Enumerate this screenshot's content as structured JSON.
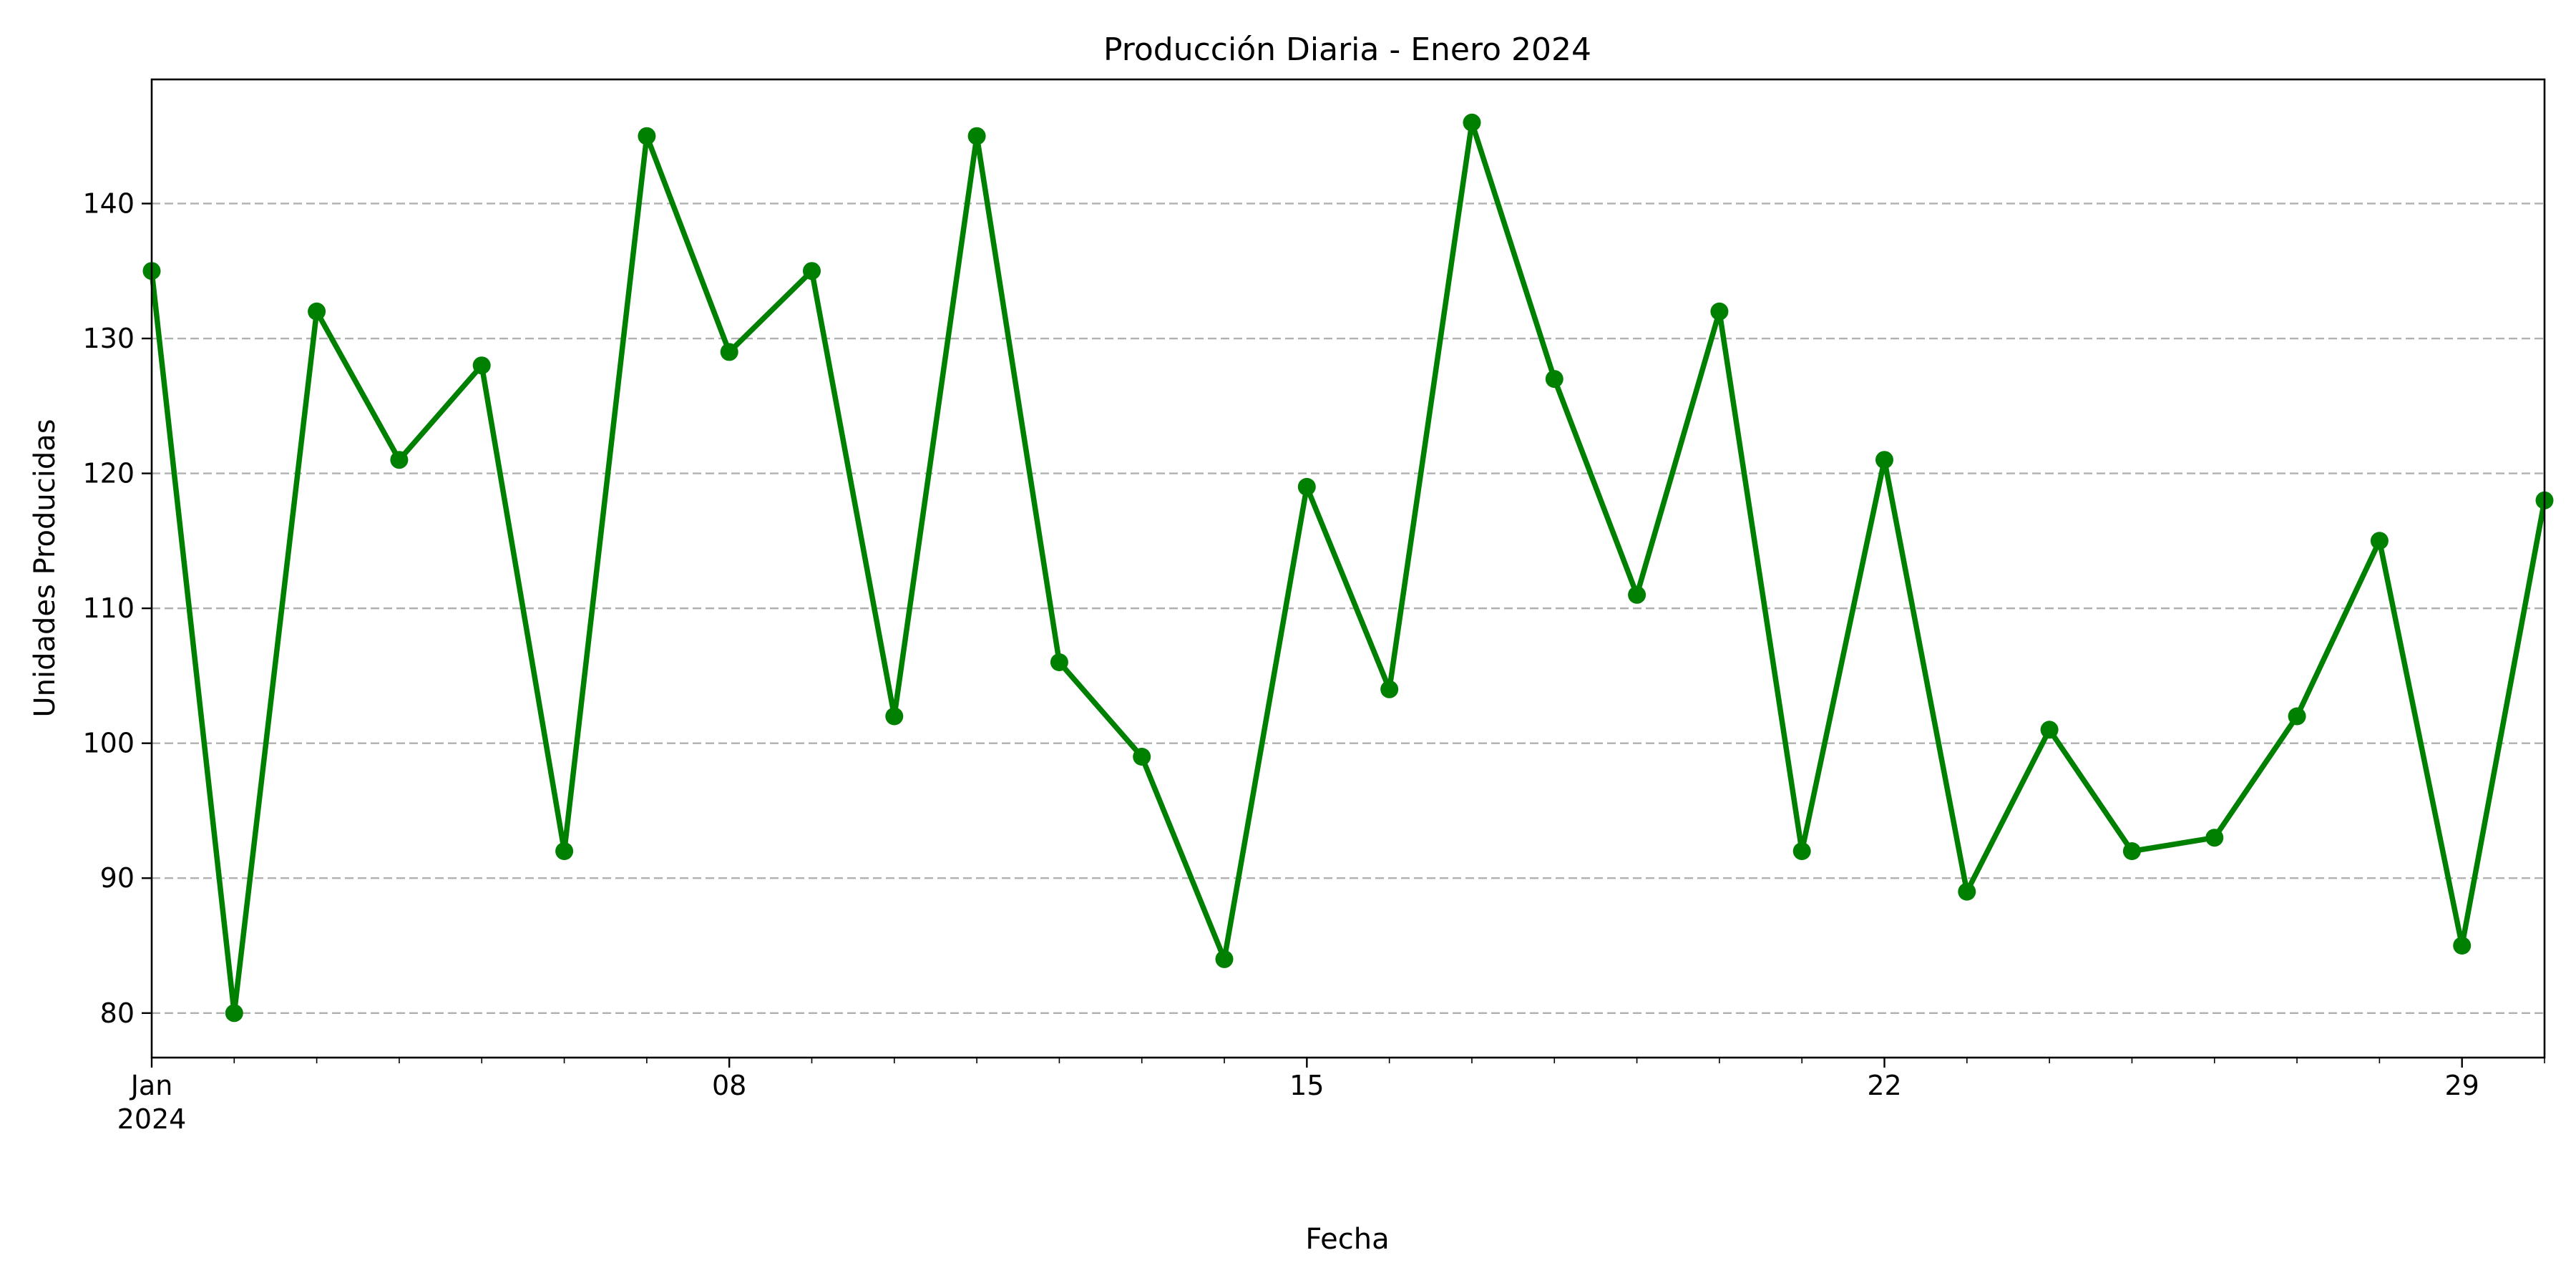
{
  "chart_data": {
    "type": "line",
    "title": "Producción Diaria - Enero 2024",
    "xlabel": "Fecha",
    "ylabel": "Unidades Producidas",
    "x": [
      "2024-01-01",
      "2024-01-02",
      "2024-01-03",
      "2024-01-04",
      "2024-01-05",
      "2024-01-06",
      "2024-01-07",
      "2024-01-08",
      "2024-01-09",
      "2024-01-10",
      "2024-01-11",
      "2024-01-12",
      "2024-01-13",
      "2024-01-14",
      "2024-01-15",
      "2024-01-16",
      "2024-01-17",
      "2024-01-18",
      "2024-01-19",
      "2024-01-20",
      "2024-01-21",
      "2024-01-22",
      "2024-01-23",
      "2024-01-24",
      "2024-01-25",
      "2024-01-26",
      "2024-01-27",
      "2024-01-28",
      "2024-01-29",
      "2024-01-30"
    ],
    "series": [
      {
        "color": "#008000",
        "marker": "circle",
        "values": [
          135,
          80,
          132,
          121,
          128,
          92,
          145,
          129,
          135,
          102,
          145,
          106,
          99,
          84,
          119,
          104,
          146,
          127,
          111,
          132,
          92,
          121,
          89,
          101,
          92,
          93,
          102,
          115,
          85,
          118
        ]
      }
    ],
    "xlim": [
      "2024-01-01",
      "2024-01-30"
    ],
    "ylim": [
      76.7,
      149.2
    ],
    "yticks": [
      80,
      90,
      100,
      110,
      120,
      130,
      140
    ],
    "xticks": [
      {
        "date": "2024-01-01",
        "label": "Jan",
        "sublabel": "2024"
      },
      {
        "date": "2024-01-08",
        "label": "08"
      },
      {
        "date": "2024-01-15",
        "label": "15"
      },
      {
        "date": "2024-01-22",
        "label": "22"
      },
      {
        "date": "2024-01-29",
        "label": "29"
      }
    ],
    "grid": "y-dashed",
    "legend": "none"
  }
}
